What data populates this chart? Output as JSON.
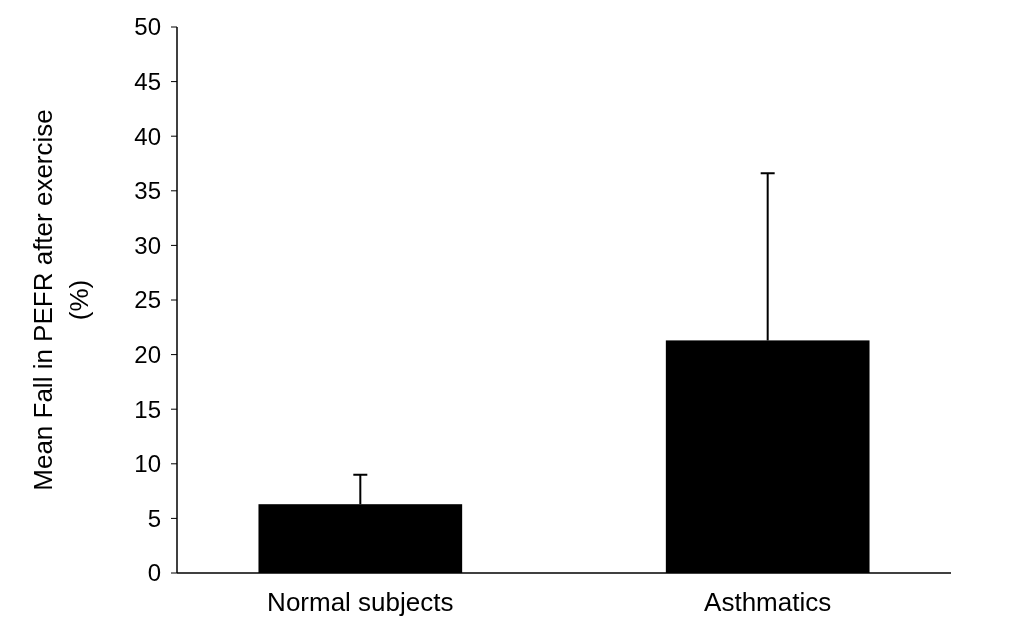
{
  "chart_data": {
    "type": "bar",
    "ylabel": "Mean Fall in PEFR after exercise (%)",
    "categories": [
      "Normal subjects",
      "Asthmatics"
    ],
    "values": [
      6.3,
      21.3
    ],
    "errors": [
      [
        6.3,
        9.0
      ],
      [
        21.3,
        36.6
      ]
    ],
    "color": "#000000",
    "ylim": [
      0,
      50
    ],
    "yticks": [
      0,
      5,
      10,
      15,
      20,
      25,
      30,
      35,
      40,
      45,
      50
    ]
  }
}
